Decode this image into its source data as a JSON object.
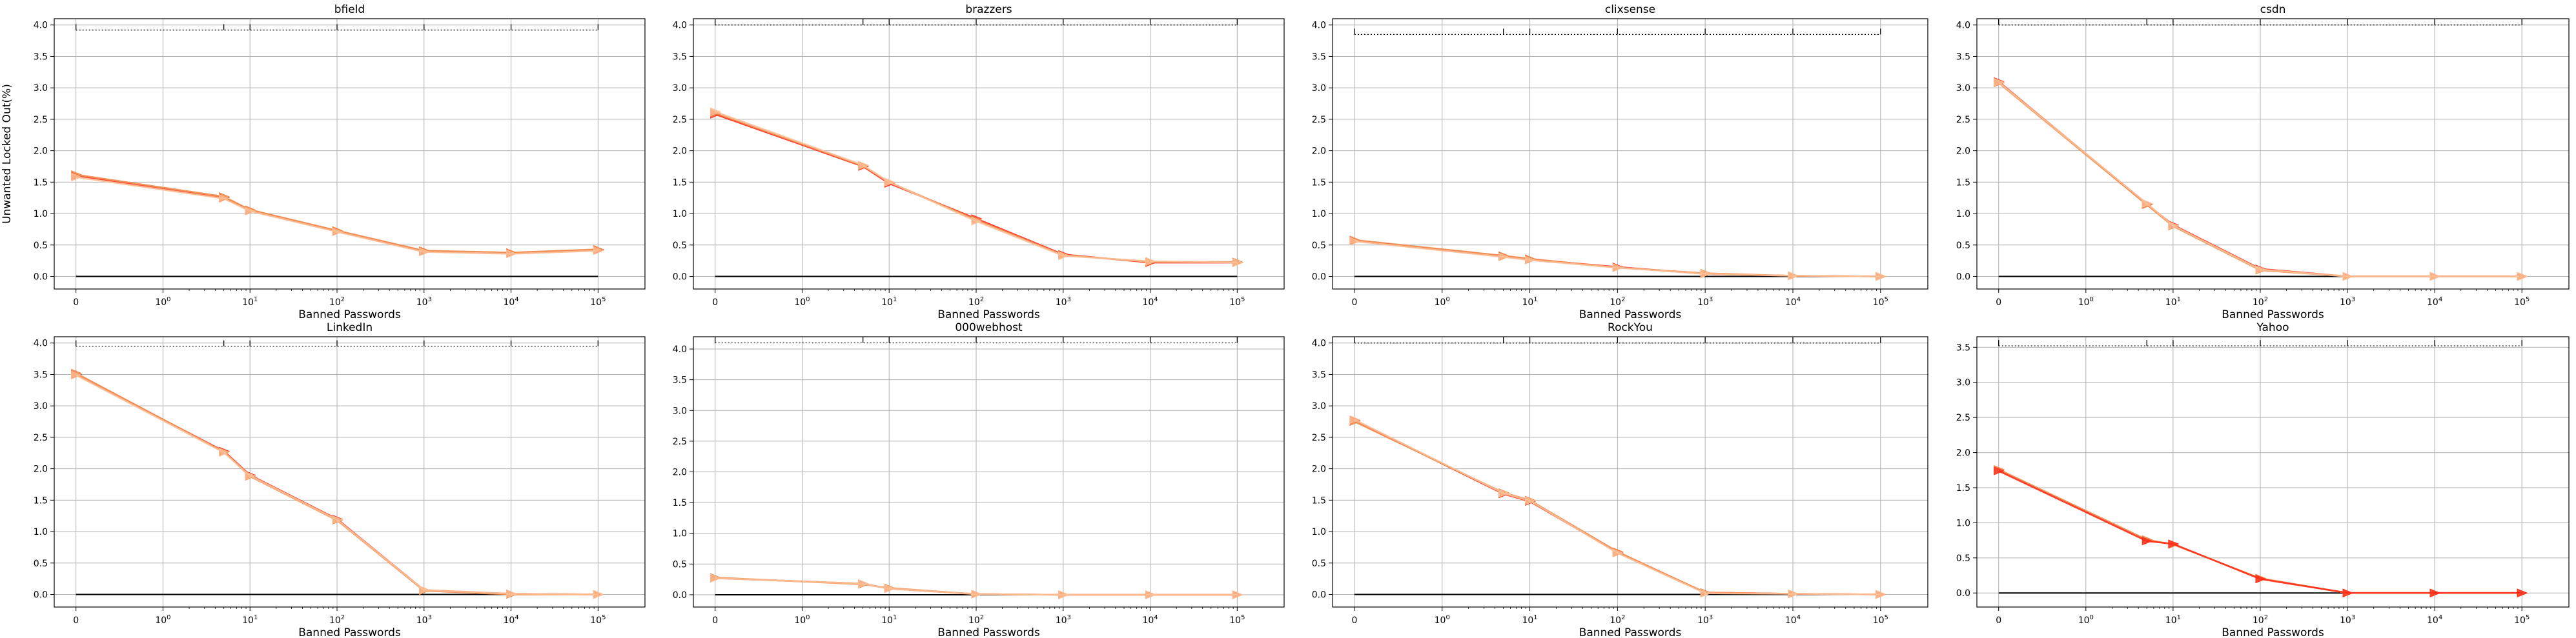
{
  "chart_data": [
    {
      "type": "line",
      "title": "bfield",
      "xlabel": "Banned Passwords",
      "ylabel": "Unwanted Locked Out(%)",
      "x_scale": "symlog",
      "x": [
        0,
        5,
        10,
        100,
        1000,
        10000,
        100000
      ],
      "ylim": [
        -0.2,
        4.1
      ],
      "y_ticks": [
        "0.0",
        "0.5",
        "1.0",
        "1.5",
        "2.0",
        "2.5",
        "3.0",
        "3.5",
        "4.0"
      ],
      "x_ticks": [
        "0",
        "10^0",
        "10^1",
        "10^2",
        "10^3",
        "10^4",
        "10^5"
      ],
      "grid": true,
      "series": [
        {
          "values": [
            1.6,
            1.25,
            1.05,
            0.72,
            0.4,
            0.37,
            0.42
          ],
          "color": "#ff2d1a"
        },
        {
          "values": [
            1.62,
            1.27,
            1.06,
            0.73,
            0.41,
            0.38,
            0.43
          ],
          "color": "#f08a4b"
        },
        {
          "values": [
            1.58,
            1.24,
            1.04,
            0.71,
            0.39,
            0.36,
            0.41
          ],
          "color": "#fcbf95"
        }
      ],
      "top_ref_y": 3.92
    },
    {
      "type": "line",
      "title": "brazzers",
      "xlabel": "Banned Passwords",
      "x_scale": "symlog",
      "x": [
        0,
        5,
        10,
        100,
        1000,
        10000,
        100000
      ],
      "ylim": [
        -0.2,
        4.1
      ],
      "y_ticks": [
        "0.0",
        "0.5",
        "1.0",
        "1.5",
        "2.0",
        "2.5",
        "3.0",
        "3.5",
        "4.0"
      ],
      "x_ticks": [
        "0",
        "10^0",
        "10^1",
        "10^2",
        "10^3",
        "10^4",
        "10^5"
      ],
      "grid": true,
      "series": [
        {
          "values": [
            2.58,
            1.75,
            1.48,
            0.92,
            0.35,
            0.22,
            0.22
          ],
          "color": "#ff2d1a"
        },
        {
          "values": [
            2.6,
            1.76,
            1.5,
            0.9,
            0.34,
            0.23,
            0.23
          ],
          "color": "#f08a4b"
        },
        {
          "values": [
            2.62,
            1.77,
            1.5,
            0.88,
            0.33,
            0.24,
            0.22
          ],
          "color": "#fcbf95"
        }
      ],
      "top_ref_y": 4.0
    },
    {
      "type": "line",
      "title": "clixsense",
      "xlabel": "Banned Passwords",
      "x_scale": "symlog",
      "x": [
        0,
        5,
        10,
        100,
        1000,
        10000,
        100000
      ],
      "ylim": [
        -0.2,
        4.1
      ],
      "y_ticks": [
        "0.0",
        "0.5",
        "1.0",
        "1.5",
        "2.0",
        "2.5",
        "3.0",
        "3.5",
        "4.0"
      ],
      "x_ticks": [
        "0",
        "10^0",
        "10^1",
        "10^2",
        "10^3",
        "10^4",
        "10^5"
      ],
      "grid": true,
      "series": [
        {
          "values": [
            0.57,
            0.32,
            0.27,
            0.15,
            0.04,
            0.01,
            0.0
          ],
          "color": "#ff2d1a"
        },
        {
          "values": [
            0.58,
            0.33,
            0.28,
            0.14,
            0.05,
            0.01,
            0.0
          ],
          "color": "#f08a4b"
        },
        {
          "values": [
            0.56,
            0.31,
            0.26,
            0.14,
            0.04,
            0.01,
            0.0
          ],
          "color": "#fcbf95"
        }
      ],
      "top_ref_y": 3.85
    },
    {
      "type": "line",
      "title": "csdn",
      "xlabel": "Banned Passwords",
      "x_scale": "symlog",
      "x": [
        0,
        5,
        10,
        100,
        1000,
        10000,
        100000
      ],
      "ylim": [
        -0.2,
        4.1
      ],
      "y_ticks": [
        "0.0",
        "0.5",
        "1.0",
        "1.5",
        "2.0",
        "2.5",
        "3.0",
        "3.5",
        "4.0"
      ],
      "x_ticks": [
        "0",
        "10^0",
        "10^1",
        "10^2",
        "10^3",
        "10^4",
        "10^5"
      ],
      "grid": true,
      "series": [
        {
          "values": [
            3.1,
            1.15,
            0.82,
            0.12,
            0.0,
            0.0,
            0.0
          ],
          "color": "#ff2d1a"
        },
        {
          "values": [
            3.08,
            1.14,
            0.8,
            0.1,
            0.0,
            0.0,
            0.0
          ],
          "color": "#f08a4b"
        },
        {
          "values": [
            3.09,
            1.16,
            0.81,
            0.11,
            0.0,
            0.0,
            0.0
          ],
          "color": "#fcbf95"
        }
      ],
      "top_ref_y": 4.0
    },
    {
      "type": "line",
      "title": "LinkedIn",
      "xlabel": "Banned Passwords",
      "x_scale": "symlog",
      "x": [
        0,
        5,
        10,
        100,
        1000,
        10000,
        100000
      ],
      "ylim": [
        -0.2,
        4.1
      ],
      "y_ticks": [
        "0.0",
        "0.5",
        "1.0",
        "1.5",
        "2.0",
        "2.5",
        "3.0",
        "3.5",
        "4.0"
      ],
      "x_ticks": [
        "0",
        "10^0",
        "10^1",
        "10^2",
        "10^3",
        "10^4",
        "10^5"
      ],
      "grid": true,
      "series": [
        {
          "values": [
            3.5,
            2.28,
            1.9,
            1.2,
            0.07,
            0.01,
            0.0
          ],
          "color": "#ff2d1a"
        },
        {
          "values": [
            3.52,
            2.27,
            1.88,
            1.18,
            0.06,
            0.0,
            0.0
          ],
          "color": "#f08a4b"
        },
        {
          "values": [
            3.49,
            2.26,
            1.89,
            1.19,
            0.07,
            0.01,
            0.0
          ],
          "color": "#fcbf95"
        }
      ],
      "top_ref_y": 3.95
    },
    {
      "type": "line",
      "title": "000webhost",
      "xlabel": "Banned Passwords",
      "x_scale": "symlog",
      "x": [
        0,
        5,
        10,
        100,
        1000,
        10000,
        100000
      ],
      "ylim": [
        -0.2,
        4.2
      ],
      "y_ticks": [
        "0.0",
        "0.5",
        "1.0",
        "1.5",
        "2.0",
        "2.5",
        "3.0",
        "3.5",
        "4.0"
      ],
      "x_ticks": [
        "0",
        "10^0",
        "10^1",
        "10^2",
        "10^3",
        "10^4",
        "10^5"
      ],
      "grid": true,
      "series": [
        {
          "values": [
            0.27,
            0.18,
            0.1,
            0.01,
            0.0,
            0.0,
            0.0
          ],
          "color": "#ff2d1a"
        },
        {
          "values": [
            0.28,
            0.17,
            0.11,
            0.01,
            0.0,
            0.0,
            0.0
          ],
          "color": "#f08a4b"
        },
        {
          "values": [
            0.27,
            0.18,
            0.1,
            0.01,
            0.0,
            0.0,
            0.0
          ],
          "color": "#fcbf95"
        }
      ],
      "top_ref_y": 4.1
    },
    {
      "type": "line",
      "title": "RockYou",
      "xlabel": "Banned Passwords",
      "x_scale": "symlog",
      "x": [
        0,
        5,
        10,
        100,
        1000,
        10000,
        100000
      ],
      "ylim": [
        -0.2,
        4.1
      ],
      "y_ticks": [
        "0.0",
        "0.5",
        "1.0",
        "1.5",
        "2.0",
        "2.5",
        "3.0",
        "3.5",
        "4.0"
      ],
      "x_ticks": [
        "0",
        "10^0",
        "10^1",
        "10^2",
        "10^3",
        "10^4",
        "10^5"
      ],
      "grid": true,
      "series": [
        {
          "values": [
            2.77,
            1.6,
            1.48,
            0.67,
            0.03,
            0.01,
            0.0
          ],
          "color": "#ff2d1a"
        },
        {
          "values": [
            2.75,
            1.62,
            1.5,
            0.68,
            0.03,
            0.01,
            0.0
          ],
          "color": "#f08a4b"
        },
        {
          "values": [
            2.78,
            1.61,
            1.49,
            0.66,
            0.02,
            0.01,
            0.0
          ],
          "color": "#fcbf95"
        }
      ],
      "top_ref_y": 4.0
    },
    {
      "type": "line",
      "title": "Yahoo",
      "xlabel": "Banned Passwords",
      "x_scale": "symlog",
      "x": [
        0,
        5,
        10,
        100,
        1000,
        10000,
        100000
      ],
      "ylim": [
        -0.2,
        3.65
      ],
      "y_ticks": [
        "0.0",
        "0.5",
        "1.0",
        "1.5",
        "2.0",
        "2.5",
        "3.0",
        "3.5"
      ],
      "x_ticks": [
        "0",
        "10^0",
        "10^1",
        "10^2",
        "10^3",
        "10^4",
        "10^5"
      ],
      "grid": true,
      "series": [
        {
          "values": [
            1.75,
            0.75,
            0.7,
            0.2,
            0.0,
            0.0,
            0.0
          ],
          "color": "#fcbf95"
        },
        {
          "values": [
            1.76,
            0.76,
            0.69,
            0.21,
            0.0,
            0.0,
            0.0
          ],
          "color": "#f08a4b"
        },
        {
          "values": [
            1.74,
            0.74,
            0.7,
            0.2,
            0.0,
            0.0,
            0.0
          ],
          "color": "#ff2d1a"
        }
      ],
      "top_ref_y": 3.52
    }
  ]
}
